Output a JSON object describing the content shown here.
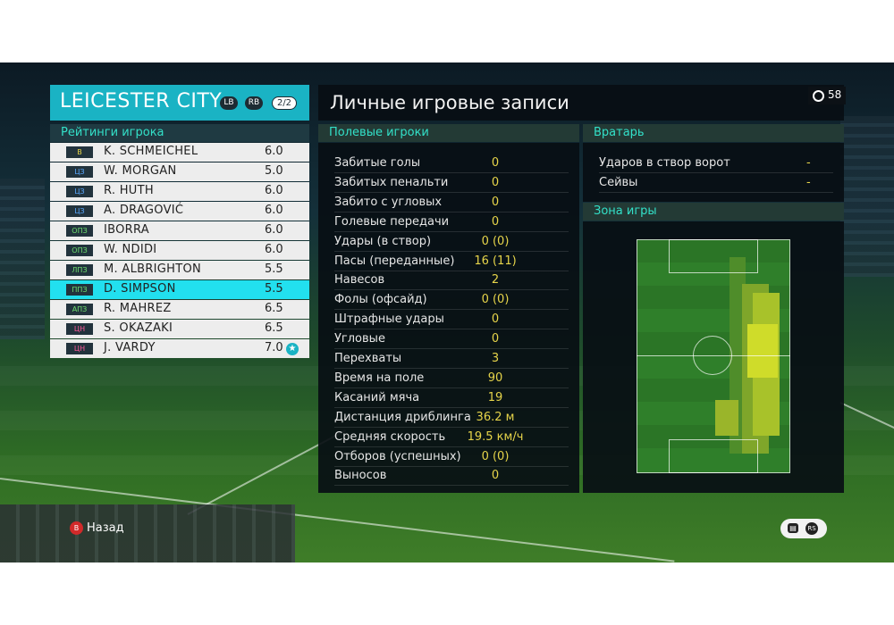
{
  "team": {
    "name": "LEICESTER CITY",
    "tag_lb": "LB",
    "tag_rb": "RB",
    "page": "2/2"
  },
  "ratings_title": "Рейтинги игрока",
  "players": [
    {
      "pos": "В",
      "name": "K. SCHMEICHEL",
      "rating": "6.0",
      "pos_color": "#e8d64a"
    },
    {
      "pos": "ЦЗ",
      "name": "W. MORGAN",
      "rating": "5.0",
      "pos_color": "#5aa8ff"
    },
    {
      "pos": "ЦЗ",
      "name": "R. HUTH",
      "rating": "6.0",
      "pos_color": "#5aa8ff"
    },
    {
      "pos": "ЦЗ",
      "name": "A. DRAGOVIĆ",
      "rating": "6.0",
      "pos_color": "#5aa8ff"
    },
    {
      "pos": "ОПЗ",
      "name": "IBORRA",
      "rating": "6.0",
      "pos_color": "#6fe06f"
    },
    {
      "pos": "ОПЗ",
      "name": "W. NDIDI",
      "rating": "6.0",
      "pos_color": "#6fe06f"
    },
    {
      "pos": "ЛПЗ",
      "name": "M. ALBRIGHTON",
      "rating": "5.5",
      "pos_color": "#6fe06f"
    },
    {
      "pos": "ППЗ",
      "name": "D. SIMPSON",
      "rating": "5.5",
      "pos_color": "#6fe06f",
      "selected": true
    },
    {
      "pos": "АПЗ",
      "name": "R. MAHREZ",
      "rating": "6.5",
      "pos_color": "#6fe06f"
    },
    {
      "pos": "ЦН",
      "name": "S. OKAZAKI",
      "rating": "6.5",
      "pos_color": "#ff5a9a"
    },
    {
      "pos": "ЦН",
      "name": "J. VARDY",
      "rating": "7.0",
      "pos_color": "#ff5a9a",
      "star": true
    }
  ],
  "main_title": "Личные игровые записи",
  "timer": "58",
  "field_players_title": "Полевые игроки",
  "stats": [
    {
      "label": "Забитые голы",
      "value": "0"
    },
    {
      "label": "Забитых пенальти",
      "value": "0"
    },
    {
      "label": "Забито с угловых",
      "value": "0"
    },
    {
      "label": "Голевые передачи",
      "value": "0"
    },
    {
      "label": "Удары (в створ)",
      "value": "0 (0)"
    },
    {
      "label": "Пасы (переданные)",
      "value": "16 (11)"
    },
    {
      "label": "Навесов",
      "value": "2"
    },
    {
      "label": "Фолы (офсайд)",
      "value": "0 (0)"
    },
    {
      "label": "Штрафные удары",
      "value": "0"
    },
    {
      "label": "Угловые",
      "value": "0"
    },
    {
      "label": "Перехваты",
      "value": "3"
    },
    {
      "label": "Время на поле",
      "value": "90"
    },
    {
      "label": "Касаний мяча",
      "value": "19"
    },
    {
      "label": "Дистанция дриблинга",
      "value": "36.2 м"
    },
    {
      "label": "Средняя скорость",
      "value": "19.5 км/ч"
    },
    {
      "label": "Отборов (успешных)",
      "value": "0 (0)"
    },
    {
      "label": "Выносов",
      "value": "0"
    }
  ],
  "goalkeeper_title": "Вратарь",
  "gk_stats": [
    {
      "label": "Ударов в створ ворот",
      "value": "-"
    },
    {
      "label": "Сейвы",
      "value": "-"
    }
  ],
  "zone_title": "Зона игры",
  "back_button": {
    "key": "B",
    "label": "Назад"
  },
  "controls": {
    "a": "▤",
    "b": "RS"
  },
  "colors": {
    "accent": "#1ab3c4",
    "section_text": "#33e0c8",
    "value_text": "#e6d44a",
    "selected_row": "#22e0ef"
  }
}
